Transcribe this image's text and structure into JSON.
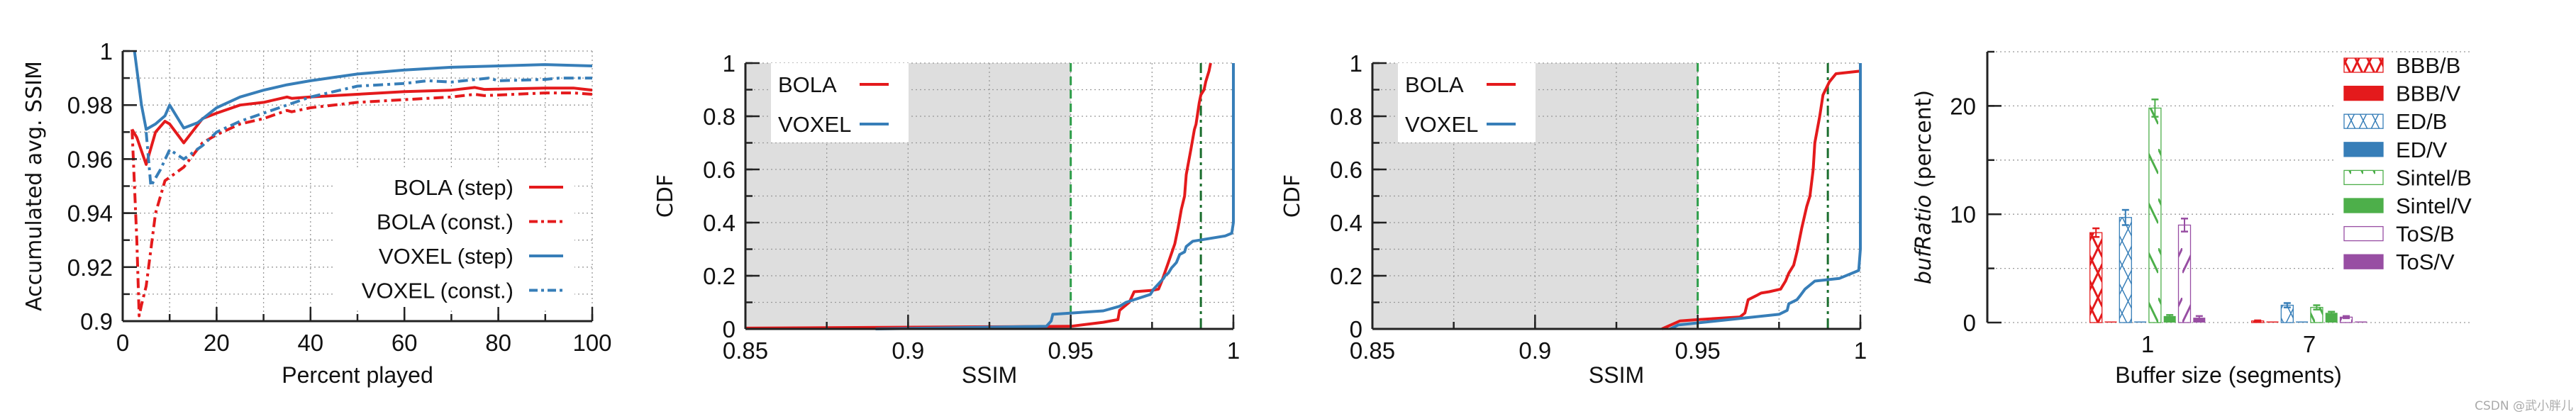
{
  "chart_data": [
    {
      "type": "line",
      "xlabel": "Percent played",
      "ylabel": "Accumulated avg. SSIM",
      "xlim": [
        0,
        100
      ],
      "ylim": [
        0.9,
        1.0
      ],
      "xticks": [
        "0",
        "20",
        "40",
        "60",
        "80",
        "100"
      ],
      "yticks": [
        "0.9",
        "0.92",
        "0.94",
        "0.96",
        "0.98",
        "1"
      ],
      "grid": true,
      "legend_position": "bottom-right",
      "series": [
        {
          "name": "BOLA (step)",
          "color": "#e41a1c",
          "style": "solid",
          "x": [
            2,
            3,
            5,
            7,
            9,
            10,
            13,
            17,
            20,
            25,
            30,
            35,
            36,
            40,
            50,
            60,
            70,
            75,
            77,
            90,
            96,
            100
          ],
          "y": [
            0.971,
            0.968,
            0.958,
            0.97,
            0.974,
            0.973,
            0.966,
            0.975,
            0.977,
            0.98,
            0.981,
            0.983,
            0.9825,
            0.983,
            0.984,
            0.985,
            0.9855,
            0.9865,
            0.9858,
            0.9863,
            0.9863,
            0.9855
          ]
        },
        {
          "name": "BOLA (const.)",
          "color": "#e41a1c",
          "style": "dashdot",
          "x": [
            2,
            3,
            3.5,
            4,
            5,
            7,
            8,
            9,
            13,
            17,
            20,
            25,
            30,
            35,
            36,
            40,
            50,
            60,
            70,
            75,
            77,
            90,
            96,
            100
          ],
          "y": [
            0.971,
            0.93,
            0.902,
            0.906,
            0.913,
            0.94,
            0.946,
            0.952,
            0.957,
            0.966,
            0.969,
            0.973,
            0.975,
            0.978,
            0.9775,
            0.979,
            0.981,
            0.982,
            0.983,
            0.984,
            0.9835,
            0.9845,
            0.9845,
            0.984
          ]
        },
        {
          "name": "VOXEL (step)",
          "color": "#377eb8",
          "style": "solid",
          "x": [
            2.5,
            4,
            5,
            7,
            9,
            10,
            13,
            16,
            20,
            25,
            30,
            35,
            40,
            50,
            60,
            70,
            80,
            90,
            100
          ],
          "y": [
            1.0,
            0.98,
            0.971,
            0.973,
            0.976,
            0.98,
            0.9715,
            0.9735,
            0.979,
            0.983,
            0.9855,
            0.9875,
            0.989,
            0.9915,
            0.993,
            0.994,
            0.9945,
            0.995,
            0.9945
          ]
        },
        {
          "name": "VOXEL (const.)",
          "color": "#377eb8",
          "style": "dashdot",
          "x": [
            5,
            6,
            8,
            10,
            13,
            17,
            20,
            25,
            30,
            35,
            40,
            50,
            55,
            60,
            65,
            70,
            78,
            80,
            90,
            93,
            100
          ],
          "y": [
            0.97,
            0.95,
            0.956,
            0.9635,
            0.96,
            0.965,
            0.97,
            0.974,
            0.977,
            0.98,
            0.983,
            0.987,
            0.9875,
            0.988,
            0.989,
            0.9885,
            0.99,
            0.989,
            0.9895,
            0.99,
            0.99
          ]
        }
      ]
    },
    {
      "type": "line",
      "xlabel": "SSIM",
      "ylabel": "CDF",
      "xlim": [
        0.85,
        1.0
      ],
      "ylim": [
        0,
        1
      ],
      "xticks": [
        "0.85",
        "0.9",
        "0.95",
        "1"
      ],
      "yticks": [
        "0",
        "0.2",
        "0.4",
        "0.6",
        "0.8",
        "1"
      ],
      "grid": true,
      "legend_position": "top-left",
      "shaded_region": [
        0.85,
        0.95
      ],
      "vertical_lines": [
        {
          "x": 0.95,
          "color": "#2e9e4a",
          "style": "dashed"
        },
        {
          "x": 0.99,
          "color": "#1b6e2e",
          "style": "dashdot"
        }
      ],
      "series": [
        {
          "name": "BOLA",
          "color": "#e41a1c",
          "x": [
            0.85,
            0.95,
            0.96,
            0.9645,
            0.965,
            0.968,
            0.9695,
            0.975,
            0.977,
            0.978,
            0.98,
            0.982,
            0.983,
            0.984,
            0.985,
            0.9855,
            0.987,
            0.988,
            0.9885,
            0.9895,
            0.99,
            0.991,
            0.9915,
            0.9925,
            0.993
          ],
          "y": [
            0.003,
            0.01,
            0.025,
            0.035,
            0.07,
            0.1,
            0.14,
            0.145,
            0.15,
            0.18,
            0.25,
            0.32,
            0.38,
            0.45,
            0.5,
            0.58,
            0.68,
            0.75,
            0.77,
            0.85,
            0.88,
            0.9,
            0.93,
            0.97,
            1.0
          ]
        },
        {
          "name": "VOXEL",
          "color": "#377eb8",
          "x": [
            0.89,
            0.9425,
            0.944,
            0.9445,
            0.96,
            0.965,
            0.967,
            0.9745,
            0.9755,
            0.977,
            0.9785,
            0.979,
            0.98,
            0.981,
            0.9825,
            0.9835,
            0.985,
            0.9855,
            0.9875,
            0.9975,
            0.9995,
            1.0,
            1.0
          ],
          "y": [
            0,
            0.01,
            0.03,
            0.055,
            0.068,
            0.085,
            0.1,
            0.13,
            0.15,
            0.17,
            0.19,
            0.2,
            0.21,
            0.23,
            0.25,
            0.28,
            0.29,
            0.31,
            0.33,
            0.35,
            0.36,
            0.4,
            1.0
          ]
        }
      ]
    },
    {
      "type": "line",
      "xlabel": "SSIM",
      "ylabel": "CDF",
      "xlim": [
        0.85,
        1.0
      ],
      "ylim": [
        0,
        1
      ],
      "xticks": [
        "0.85",
        "0.9",
        "0.95",
        "1"
      ],
      "yticks": [
        "0",
        "0.2",
        "0.4",
        "0.6",
        "0.8",
        "1"
      ],
      "grid": true,
      "legend_position": "top-left",
      "shaded_region": [
        0.85,
        0.95
      ],
      "vertical_lines": [
        {
          "x": 0.95,
          "color": "#2e9e4a",
          "style": "dashed"
        },
        {
          "x": 0.99,
          "color": "#1b6e2e",
          "style": "dashdot"
        }
      ],
      "series": [
        {
          "name": "BOLA",
          "color": "#e41a1c",
          "x": [
            0.939,
            0.9445,
            0.95,
            0.963,
            0.9645,
            0.9655,
            0.968,
            0.9695,
            0.972,
            0.9755,
            0.977,
            0.978,
            0.9795,
            0.9805,
            0.982,
            0.9835,
            0.9845,
            0.9855,
            0.986,
            0.9875,
            0.9885,
            0.9905,
            0.9925,
            1.0
          ],
          "y": [
            0,
            0.03,
            0.035,
            0.045,
            0.06,
            0.11,
            0.125,
            0.135,
            0.14,
            0.15,
            0.18,
            0.21,
            0.24,
            0.29,
            0.38,
            0.46,
            0.5,
            0.6,
            0.7,
            0.8,
            0.88,
            0.93,
            0.96,
            0.97
          ]
        },
        {
          "name": "VOXEL",
          "color": "#377eb8",
          "x": [
            0.9415,
            0.944,
            0.975,
            0.9775,
            0.978,
            0.9805,
            0.9815,
            0.983,
            0.986,
            0.9935,
            0.9995,
            1.0,
            1.0
          ],
          "y": [
            0,
            0.015,
            0.055,
            0.07,
            0.095,
            0.11,
            0.125,
            0.15,
            0.18,
            0.19,
            0.22,
            0.3,
            1.0
          ]
        }
      ]
    },
    {
      "type": "bar",
      "xlabel": "Buffer size (segments)",
      "ylabel_italic": "bufRatio",
      "ylabel_rest": " (percent)",
      "ylim": [
        0,
        25
      ],
      "yticks": [
        "0",
        "10",
        "20"
      ],
      "categories": [
        "1",
        "7"
      ],
      "grid": true,
      "legend_position": "top-right",
      "series": [
        {
          "name": "BBB/B",
          "color": "#e41a1c",
          "fill": "hatch-x",
          "values": [
            8.3,
            0.15
          ],
          "errors": [
            0.4,
            0.05
          ]
        },
        {
          "name": "BBB/V",
          "color": "#e41a1c",
          "fill": "solid",
          "values": [
            0.05,
            0.05
          ],
          "errors": [
            0,
            0
          ]
        },
        {
          "name": "ED/B",
          "color": "#377eb8",
          "fill": "hatch-cross",
          "values": [
            9.7,
            1.6
          ],
          "errors": [
            0.7,
            0.2
          ]
        },
        {
          "name": "ED/V",
          "color": "#377eb8",
          "fill": "solid",
          "values": [
            0.05,
            0.03
          ],
          "errors": [
            0,
            0
          ]
        },
        {
          "name": "Sintel/B",
          "color": "#4daf4a",
          "fill": "hatch-back",
          "values": [
            19.8,
            1.4
          ],
          "errors": [
            0.8,
            0.2
          ]
        },
        {
          "name": "Sintel/V",
          "color": "#4daf4a",
          "fill": "solid",
          "values": [
            0.6,
            0.9
          ],
          "errors": [
            0.1,
            0.1
          ]
        },
        {
          "name": "ToS/B",
          "color": "#984ea3",
          "fill": "hatch-fwd",
          "values": [
            9.0,
            0.5
          ],
          "errors": [
            0.6,
            0.1
          ]
        },
        {
          "name": "ToS/V",
          "color": "#984ea3",
          "fill": "solid",
          "values": [
            0.45,
            0.05
          ],
          "errors": [
            0.15,
            0
          ]
        }
      ]
    }
  ],
  "watermark": "CSDN @武小胖儿"
}
